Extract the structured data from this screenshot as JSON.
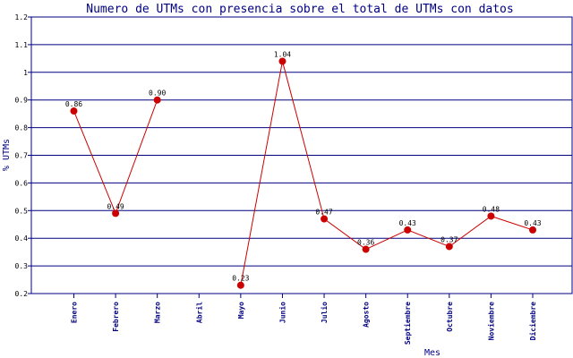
{
  "chart_data": {
    "type": "line",
    "title": "Numero de UTMs con presencia sobre el total de UTMs con datos",
    "xlabel": "Mes",
    "ylabel": "% UTMs",
    "ylim": [
      0.2,
      1.2
    ],
    "yticks": [
      0.2,
      0.3,
      0.4,
      0.5,
      0.6,
      0.7,
      0.8,
      0.9,
      1,
      1.1,
      1.2
    ],
    "ytick_labels": [
      "0.2",
      "0.3",
      "0.4",
      "0.5",
      "0.6",
      "0.7",
      "0.8",
      "0.9",
      "1",
      "1.1",
      "1.2"
    ],
    "grid": true,
    "categories": [
      "Enero",
      "Febrero",
      "Marzo",
      "Abril",
      "Mayo",
      "Junio",
      "Julio",
      "Agosto",
      "Septiembre",
      "Octubre",
      "Noviembre",
      "Diciembre"
    ],
    "series": [
      {
        "values": [
          0.86,
          0.49,
          0.9,
          null,
          0.23,
          1.04,
          0.47,
          0.36,
          0.43,
          0.37,
          0.48,
          0.43
        ],
        "labels": [
          "0.86",
          "0.49",
          "0.90",
          "",
          "0.23",
          "1.04",
          "0.47",
          "0.36",
          "0.43",
          "0.37",
          "0.48",
          "0.43"
        ],
        "color": "#cc0000"
      }
    ],
    "colors": {
      "title": "#000080",
      "axis_labels": "#000080",
      "grid": "#000080",
      "line": "#cc0000"
    }
  }
}
